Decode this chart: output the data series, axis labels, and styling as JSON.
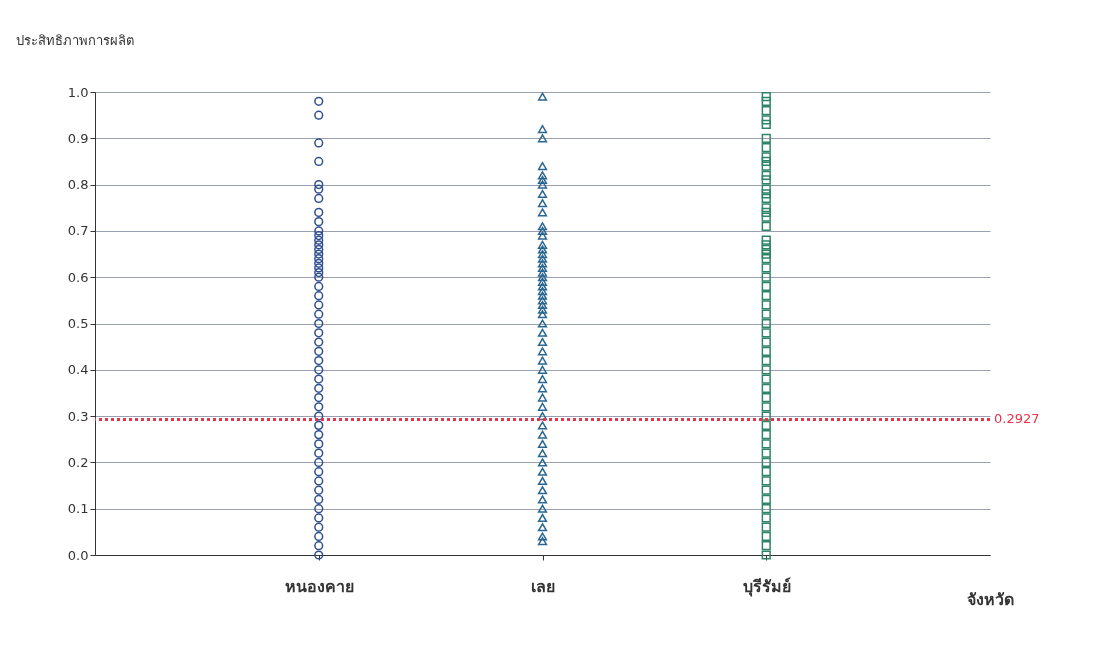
{
  "chart_data": {
    "type": "scatter",
    "ylabel": "ประสิทธิภาพการผลิต",
    "xlabel": "จังหวัด",
    "categories": [
      "หนองคาย",
      "เลย",
      "บุรีรัมย์"
    ],
    "ylim": [
      0,
      1
    ],
    "yticks": [
      {
        "value": 0,
        "label": "0.0"
      },
      0.1,
      0.2,
      0.3,
      0.4,
      0.5,
      0.6,
      0.7,
      0.8,
      0.9,
      {
        "value": 1,
        "label": "1.0"
      }
    ],
    "grid": "y",
    "ref_lines": [
      {
        "axis": "y",
        "value": 0.2927,
        "label": "0.2927",
        "color": "#e8334a",
        "line_style": "dotted"
      }
    ],
    "series": [
      {
        "color": "#2f4f8f",
        "marker": "circle",
        "x": [
          "หนองคาย",
          "หนองคาย",
          "หนองคาย",
          "หนองคาย",
          "หนองคาย",
          "หนองคาย",
          "หนองคาย",
          "หนองคาย",
          "หนองคาย",
          "หนองคาย",
          "หนองคาย",
          "หนองคาย",
          "หนองคาย",
          "หนองคาย",
          "หนองคาย",
          "หนองคาย",
          "หนองคาย",
          "หนองคาย",
          "หนองคาย",
          "หนองคาย",
          "หนองคาย",
          "หนองคาย",
          "หนองคาย",
          "หนองคาย",
          "หนองคาย",
          "หนองคาย",
          "หนองคาย",
          "หนองคาย",
          "หนองคาย",
          "หนองคาย",
          "หนองคาย",
          "หนองคาย",
          "หนองคาย",
          "หนองคาย",
          "หนองคาย",
          "หนองคาย",
          "หนองคาย",
          "หนองคาย",
          "หนองคาย",
          "หนองคาย",
          "หนองคาย",
          "หนองคาย",
          "หนองคาย",
          "หนองคาย",
          "หนองคาย",
          "หนองคาย",
          "หนองคาย",
          "หนองคาย",
          "หนองคาย",
          "หนองคาย"
        ],
        "values": [
          0.98,
          0.95,
          0.89,
          0.85,
          0.8,
          0.79,
          0.77,
          0.74,
          0.72,
          0.7,
          0.69,
          0.68,
          0.67,
          0.66,
          0.65,
          0.64,
          0.63,
          0.62,
          0.61,
          0.6,
          0.58,
          0.56,
          0.54,
          0.52,
          0.5,
          0.48,
          0.46,
          0.44,
          0.42,
          0.4,
          0.38,
          0.36,
          0.34,
          0.32,
          0.3,
          0.28,
          0.26,
          0.24,
          0.22,
          0.2,
          0.18,
          0.16,
          0.14,
          0.12,
          0.1,
          0.08,
          0.06,
          0.04,
          0.02,
          0.0
        ]
      },
      {
        "color": "#2a6690",
        "marker": "triangle",
        "x": [
          "เลย",
          "เลย",
          "เลย",
          "เลย",
          "เลย",
          "เลย",
          "เลย",
          "เลย",
          "เลย",
          "เลย",
          "เลย",
          "เลย",
          "เลย",
          "เลย",
          "เลย",
          "เลย",
          "เลย",
          "เลย",
          "เลย",
          "เลย",
          "เลย",
          "เลย",
          "เลย",
          "เลย",
          "เลย",
          "เลย",
          "เลย",
          "เลย",
          "เลย",
          "เลย",
          "เลย",
          "เลย",
          "เลย",
          "เลย",
          "เลย",
          "เลย",
          "เลย",
          "เลย",
          "เลย",
          "เลย",
          "เลย",
          "เลย",
          "เลย",
          "เลย",
          "เลย",
          "เลย",
          "เลย",
          "เลย",
          "เลย",
          "เลย",
          "เลย",
          "เลย",
          "เลย",
          "เลย"
        ],
        "values": [
          0.99,
          0.92,
          0.9,
          0.84,
          0.82,
          0.81,
          0.8,
          0.78,
          0.76,
          0.74,
          0.71,
          0.7,
          0.69,
          0.67,
          0.66,
          0.65,
          0.64,
          0.63,
          0.62,
          0.61,
          0.6,
          0.59,
          0.58,
          0.57,
          0.56,
          0.55,
          0.54,
          0.53,
          0.52,
          0.5,
          0.48,
          0.46,
          0.44,
          0.42,
          0.4,
          0.38,
          0.36,
          0.34,
          0.32,
          0.3,
          0.28,
          0.26,
          0.24,
          0.22,
          0.2,
          0.18,
          0.16,
          0.14,
          0.12,
          0.1,
          0.08,
          0.06,
          0.04,
          0.03
        ]
      },
      {
        "color": "#2e8566",
        "marker": "square",
        "x": [
          "บุรีรัมย์",
          "บุรีรัมย์",
          "บุรีรัมย์",
          "บุรีรัมย์",
          "บุรีรัมย์",
          "บุรีรัมย์",
          "บุรีรัมย์",
          "บุรีรัมย์",
          "บุรีรัมย์",
          "บุรีรัมย์",
          "บุรีรัมย์",
          "บุรีรัมย์",
          "บุรีรัมย์",
          "บุรีรัมย์",
          "บุรีรัมย์",
          "บุรีรัมย์",
          "บุรีรัมย์",
          "บุรีรัมย์",
          "บุรีรัมย์",
          "บุรีรัมย์",
          "บุรีรัมย์",
          "บุรีรัมย์",
          "บุรีรัมย์",
          "บุรีรัมย์",
          "บุรีรัมย์",
          "บุรีรัมย์",
          "บุรีรัมย์",
          "บุรีรัมย์",
          "บุรีรัมย์",
          "บุรีรัมย์",
          "บุรีรัมย์",
          "บุรีรัมย์",
          "บุรีรัมย์",
          "บุรีรัมย์",
          "บุรีรัมย์",
          "บุรีรัมย์",
          "บุรีรัมย์",
          "บุรีรัมย์",
          "บุรีรัมย์",
          "บุรีรัมย์",
          "บุรีรัมย์",
          "บุรีรัมย์",
          "บุรีรัมย์",
          "บุรีรัมย์",
          "บุรีรัมย์",
          "บุรีรัมย์",
          "บุรีรัมย์",
          "บุรีรัมย์",
          "บุรีรัมย์",
          "บุรีรัมย์",
          "บุรีรัมย์",
          "บุรีรัมย์",
          "บุรีรัมย์",
          "บุรีรัมย์",
          "บุรีรัมย์",
          "บุรีรัมย์"
        ],
        "values": [
          0.99,
          0.98,
          0.96,
          0.94,
          0.93,
          0.9,
          0.88,
          0.86,
          0.85,
          0.84,
          0.82,
          0.81,
          0.79,
          0.78,
          0.77,
          0.75,
          0.74,
          0.73,
          0.71,
          0.68,
          0.67,
          0.66,
          0.65,
          0.64,
          0.62,
          0.6,
          0.58,
          0.56,
          0.54,
          0.52,
          0.5,
          0.48,
          0.46,
          0.44,
          0.42,
          0.4,
          0.38,
          0.36,
          0.34,
          0.32,
          0.3,
          0.28,
          0.26,
          0.24,
          0.22,
          0.2,
          0.18,
          0.16,
          0.14,
          0.12,
          0.1,
          0.08,
          0.06,
          0.04,
          0.02,
          0.0
        ]
      }
    ]
  }
}
